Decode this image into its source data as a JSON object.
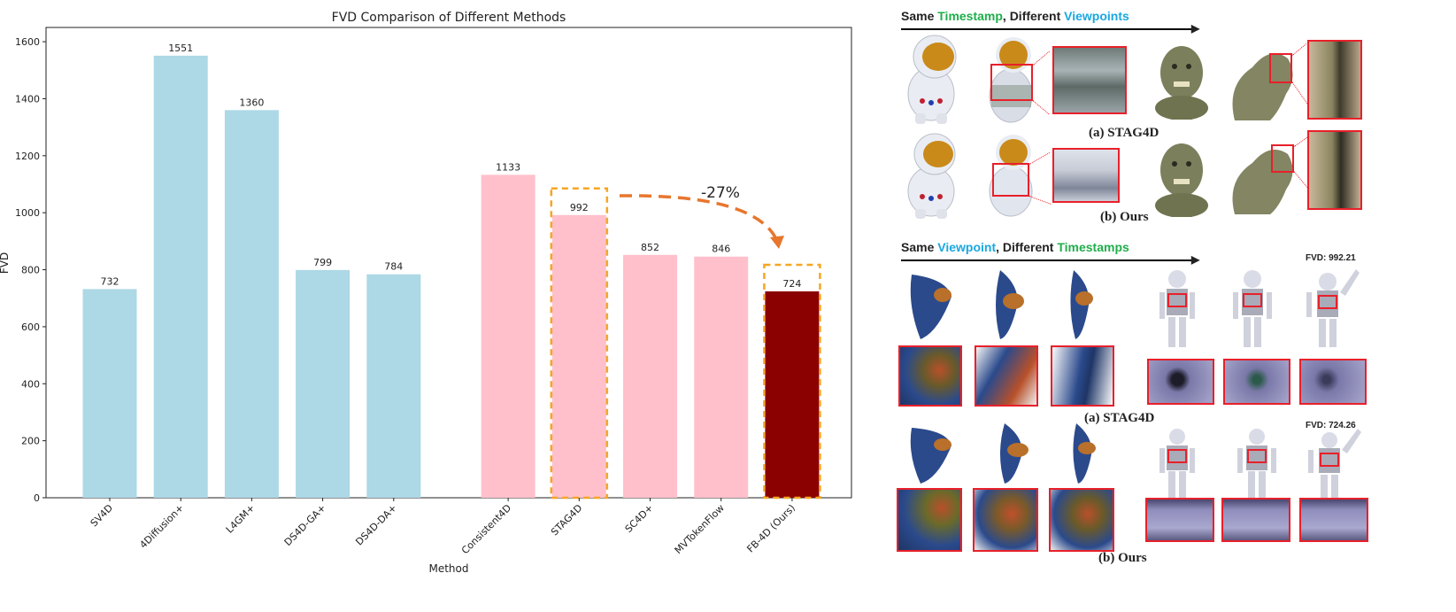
{
  "chart_data": {
    "type": "bar",
    "title": "FVD Comparison of Different Methods",
    "xlabel": "Method",
    "ylabel": "FVD",
    "ylim": [
      0,
      1650
    ],
    "yticks": [
      0,
      200,
      400,
      600,
      800,
      1000,
      1200,
      1400,
      1600
    ],
    "grid": false,
    "groups": [
      {
        "color": "#add8e6",
        "categories": [
          "SV4D",
          "4Diffusion+",
          "L4GM+",
          "DS4D-GA+",
          "DS4D-DA+"
        ],
        "values": [
          732,
          1551,
          1360,
          799,
          784
        ]
      },
      {
        "color": "#ffc0cb",
        "categories": [
          "Consistent4D",
          "STAG4D",
          "SC4D+",
          "MVTokenFlow"
        ],
        "values": [
          1133,
          992,
          852,
          846
        ]
      },
      {
        "color": "#8b0000",
        "categories": [
          "FB-4D (Ours)"
        ],
        "values": [
          724
        ]
      }
    ],
    "highlight_boxes": [
      "STAG4D",
      "FB-4D (Ours)"
    ],
    "highlight_color": "#f5a623",
    "annotation": {
      "text": "-27%",
      "from": "STAG4D",
      "to": "FB-4D (Ours)",
      "color": "#e8762d"
    }
  },
  "figure": {
    "top_header": {
      "parts": [
        {
          "text": "Same ",
          "color": "#000000"
        },
        {
          "text": "Timestamp",
          "color": "#1fae4b"
        },
        {
          "text": ", Different ",
          "color": "#000000"
        },
        {
          "text": "Viewpoints",
          "color": "#1aa7e0"
        }
      ]
    },
    "bottom_header": {
      "parts": [
        {
          "text": "Same ",
          "color": "#000000"
        },
        {
          "text": "Viewpoint",
          "color": "#1aa7e0"
        },
        {
          "text": ", Different ",
          "color": "#000000"
        },
        {
          "text": "Timestamps",
          "color": "#1fae4b"
        }
      ]
    },
    "captions": {
      "top_a": "(a) STAG4D",
      "top_b": "(b) Ours",
      "bottom_a": "(a) STAG4D",
      "bottom_b": "(b) Ours"
    },
    "fvd_labels": {
      "stag4d": "FVD: 992.21",
      "ours": "FVD: 724.26"
    },
    "colors": {
      "box_red": "#e8202a",
      "astronaut_helmet": "#c98a1a",
      "suit": "#e9ecf2",
      "head": "#7c7f5c",
      "fish": "#2b4a8c",
      "robot": "#a9abb8"
    }
  }
}
